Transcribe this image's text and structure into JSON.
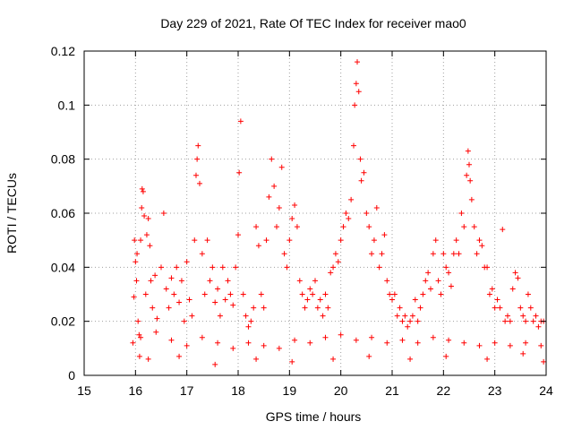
{
  "chart_data": {
    "type": "scatter",
    "title": "Day 229 of 2021, Rate Of TEC Index for receiver mao0",
    "xlabel": "GPS time / hours",
    "ylabel": "ROTI / TECUs",
    "xlim": [
      15,
      24
    ],
    "ylim": [
      0,
      0.12
    ],
    "xticks": [
      15,
      16,
      17,
      18,
      19,
      20,
      21,
      22,
      23,
      24
    ],
    "xtick_labels": [
      "15",
      "16",
      "17",
      "18",
      "19",
      "20",
      "21",
      "22",
      "23",
      "24"
    ],
    "yticks": [
      0,
      0.02,
      0.04,
      0.06,
      0.08,
      0.1,
      0.12
    ],
    "ytick_labels": [
      "0",
      "0.02",
      "0.04",
      "0.06",
      "0.08",
      "0.1",
      "0.12"
    ],
    "grid": true,
    "marker": "+",
    "color": "#ff0000",
    "series": [
      {
        "name": "ROTI",
        "points": [
          [
            15.95,
            0.012
          ],
          [
            15.97,
            0.029
          ],
          [
            15.98,
            0.05
          ],
          [
            16.0,
            0.042
          ],
          [
            16.02,
            0.035
          ],
          [
            16.03,
            0.045
          ],
          [
            16.05,
            0.02
          ],
          [
            16.07,
            0.015
          ],
          [
            16.08,
            0.007
          ],
          [
            16.1,
            0.05
          ],
          [
            16.12,
            0.062
          ],
          [
            16.13,
            0.069
          ],
          [
            16.15,
            0.068
          ],
          [
            16.17,
            0.059
          ],
          [
            16.2,
            0.03
          ],
          [
            16.22,
            0.052
          ],
          [
            16.25,
            0.058
          ],
          [
            16.28,
            0.048
          ],
          [
            16.3,
            0.035
          ],
          [
            16.33,
            0.025
          ],
          [
            16.38,
            0.037
          ],
          [
            16.42,
            0.021
          ],
          [
            16.5,
            0.04
          ],
          [
            16.55,
            0.06
          ],
          [
            16.6,
            0.032
          ],
          [
            16.65,
            0.025
          ],
          [
            16.7,
            0.036
          ],
          [
            16.75,
            0.03
          ],
          [
            16.8,
            0.04
          ],
          [
            16.85,
            0.027
          ],
          [
            16.9,
            0.035
          ],
          [
            16.95,
            0.02
          ],
          [
            17.0,
            0.042
          ],
          [
            17.05,
            0.028
          ],
          [
            17.1,
            0.022
          ],
          [
            17.15,
            0.05
          ],
          [
            17.18,
            0.074
          ],
          [
            17.2,
            0.08
          ],
          [
            17.22,
            0.085
          ],
          [
            17.25,
            0.071
          ],
          [
            17.3,
            0.045
          ],
          [
            17.35,
            0.03
          ],
          [
            17.4,
            0.05
          ],
          [
            17.45,
            0.035
          ],
          [
            17.5,
            0.04
          ],
          [
            17.55,
            0.027
          ],
          [
            17.6,
            0.032
          ],
          [
            17.65,
            0.022
          ],
          [
            17.7,
            0.04
          ],
          [
            17.75,
            0.028
          ],
          [
            17.8,
            0.035
          ],
          [
            17.85,
            0.03
          ],
          [
            17.9,
            0.026
          ],
          [
            17.95,
            0.04
          ],
          [
            18.0,
            0.052
          ],
          [
            18.02,
            0.075
          ],
          [
            18.05,
            0.094
          ],
          [
            18.1,
            0.03
          ],
          [
            18.15,
            0.022
          ],
          [
            18.2,
            0.018
          ],
          [
            18.25,
            0.02
          ],
          [
            18.3,
            0.025
          ],
          [
            18.35,
            0.055
          ],
          [
            18.4,
            0.048
          ],
          [
            18.45,
            0.03
          ],
          [
            18.5,
            0.025
          ],
          [
            18.55,
            0.05
          ],
          [
            18.6,
            0.066
          ],
          [
            18.65,
            0.08
          ],
          [
            18.7,
            0.07
          ],
          [
            18.75,
            0.055
          ],
          [
            18.8,
            0.062
          ],
          [
            18.85,
            0.077
          ],
          [
            18.9,
            0.045
          ],
          [
            18.95,
            0.04
          ],
          [
            19.0,
            0.05
          ],
          [
            19.05,
            0.058
          ],
          [
            19.1,
            0.063
          ],
          [
            19.15,
            0.055
          ],
          [
            19.2,
            0.035
          ],
          [
            19.25,
            0.03
          ],
          [
            19.3,
            0.025
          ],
          [
            19.35,
            0.028
          ],
          [
            19.4,
            0.032
          ],
          [
            19.45,
            0.03
          ],
          [
            19.5,
            0.035
          ],
          [
            19.55,
            0.025
          ],
          [
            19.6,
            0.028
          ],
          [
            19.65,
            0.022
          ],
          [
            19.7,
            0.03
          ],
          [
            19.75,
            0.025
          ],
          [
            19.8,
            0.038
          ],
          [
            19.85,
            0.04
          ],
          [
            19.9,
            0.045
          ],
          [
            19.95,
            0.042
          ],
          [
            20.0,
            0.05
          ],
          [
            20.05,
            0.055
          ],
          [
            20.1,
            0.06
          ],
          [
            20.15,
            0.058
          ],
          [
            20.2,
            0.065
          ],
          [
            20.25,
            0.085
          ],
          [
            20.27,
            0.1
          ],
          [
            20.3,
            0.108
          ],
          [
            20.32,
            0.116
          ],
          [
            20.35,
            0.105
          ],
          [
            20.38,
            0.08
          ],
          [
            20.4,
            0.072
          ],
          [
            20.45,
            0.075
          ],
          [
            20.5,
            0.06
          ],
          [
            20.55,
            0.055
          ],
          [
            20.6,
            0.045
          ],
          [
            20.65,
            0.05
          ],
          [
            20.7,
            0.062
          ],
          [
            20.75,
            0.04
          ],
          [
            20.8,
            0.045
          ],
          [
            20.85,
            0.052
          ],
          [
            20.9,
            0.035
          ],
          [
            20.95,
            0.03
          ],
          [
            21.0,
            0.028
          ],
          [
            21.05,
            0.03
          ],
          [
            21.1,
            0.022
          ],
          [
            21.15,
            0.025
          ],
          [
            21.2,
            0.02
          ],
          [
            21.25,
            0.022
          ],
          [
            21.3,
            0.018
          ],
          [
            21.35,
            0.02
          ],
          [
            21.4,
            0.022
          ],
          [
            21.45,
            0.028
          ],
          [
            21.5,
            0.02
          ],
          [
            21.55,
            0.025
          ],
          [
            21.6,
            0.03
          ],
          [
            21.65,
            0.035
          ],
          [
            21.7,
            0.038
          ],
          [
            21.75,
            0.032
          ],
          [
            21.8,
            0.045
          ],
          [
            21.85,
            0.05
          ],
          [
            21.9,
            0.035
          ],
          [
            21.95,
            0.03
          ],
          [
            22.0,
            0.045
          ],
          [
            22.05,
            0.04
          ],
          [
            22.1,
            0.038
          ],
          [
            22.15,
            0.033
          ],
          [
            22.2,
            0.045
          ],
          [
            22.25,
            0.05
          ],
          [
            22.3,
            0.045
          ],
          [
            22.35,
            0.06
          ],
          [
            22.4,
            0.055
          ],
          [
            22.45,
            0.074
          ],
          [
            22.48,
            0.083
          ],
          [
            22.5,
            0.078
          ],
          [
            22.52,
            0.072
          ],
          [
            22.55,
            0.065
          ],
          [
            22.6,
            0.055
          ],
          [
            22.65,
            0.045
          ],
          [
            22.7,
            0.05
          ],
          [
            22.75,
            0.048
          ],
          [
            22.8,
            0.04
          ],
          [
            22.85,
            0.04
          ],
          [
            22.9,
            0.03
          ],
          [
            22.95,
            0.032
          ],
          [
            23.0,
            0.025
          ],
          [
            23.05,
            0.028
          ],
          [
            23.1,
            0.025
          ],
          [
            23.15,
            0.054
          ],
          [
            23.2,
            0.02
          ],
          [
            23.25,
            0.022
          ],
          [
            23.3,
            0.02
          ],
          [
            23.35,
            0.032
          ],
          [
            23.4,
            0.038
          ],
          [
            23.45,
            0.036
          ],
          [
            23.5,
            0.025
          ],
          [
            23.55,
            0.022
          ],
          [
            23.6,
            0.02
          ],
          [
            23.65,
            0.03
          ],
          [
            23.7,
            0.025
          ],
          [
            23.75,
            0.02
          ],
          [
            23.8,
            0.022
          ],
          [
            23.85,
            0.018
          ],
          [
            23.9,
            0.02
          ],
          [
            23.95,
            0.02
          ],
          [
            16.1,
            0.014
          ],
          [
            16.4,
            0.016
          ],
          [
            16.7,
            0.013
          ],
          [
            17.0,
            0.011
          ],
          [
            17.3,
            0.014
          ],
          [
            17.6,
            0.012
          ],
          [
            17.9,
            0.01
          ],
          [
            18.2,
            0.012
          ],
          [
            18.5,
            0.011
          ],
          [
            18.8,
            0.01
          ],
          [
            19.1,
            0.013
          ],
          [
            19.4,
            0.012
          ],
          [
            19.7,
            0.014
          ],
          [
            20.0,
            0.015
          ],
          [
            20.3,
            0.013
          ],
          [
            20.6,
            0.014
          ],
          [
            20.9,
            0.012
          ],
          [
            21.2,
            0.013
          ],
          [
            21.5,
            0.012
          ],
          [
            21.8,
            0.014
          ],
          [
            22.1,
            0.013
          ],
          [
            22.4,
            0.012
          ],
          [
            22.7,
            0.011
          ],
          [
            23.0,
            0.012
          ],
          [
            23.3,
            0.011
          ],
          [
            23.6,
            0.012
          ],
          [
            23.9,
            0.011
          ],
          [
            16.25,
            0.006
          ],
          [
            16.85,
            0.007
          ],
          [
            17.55,
            0.004
          ],
          [
            18.35,
            0.006
          ],
          [
            19.05,
            0.005
          ],
          [
            19.85,
            0.006
          ],
          [
            20.55,
            0.007
          ],
          [
            21.35,
            0.006
          ],
          [
            22.05,
            0.007
          ],
          [
            22.85,
            0.006
          ],
          [
            23.55,
            0.008
          ],
          [
            23.95,
            0.005
          ]
        ]
      }
    ]
  }
}
